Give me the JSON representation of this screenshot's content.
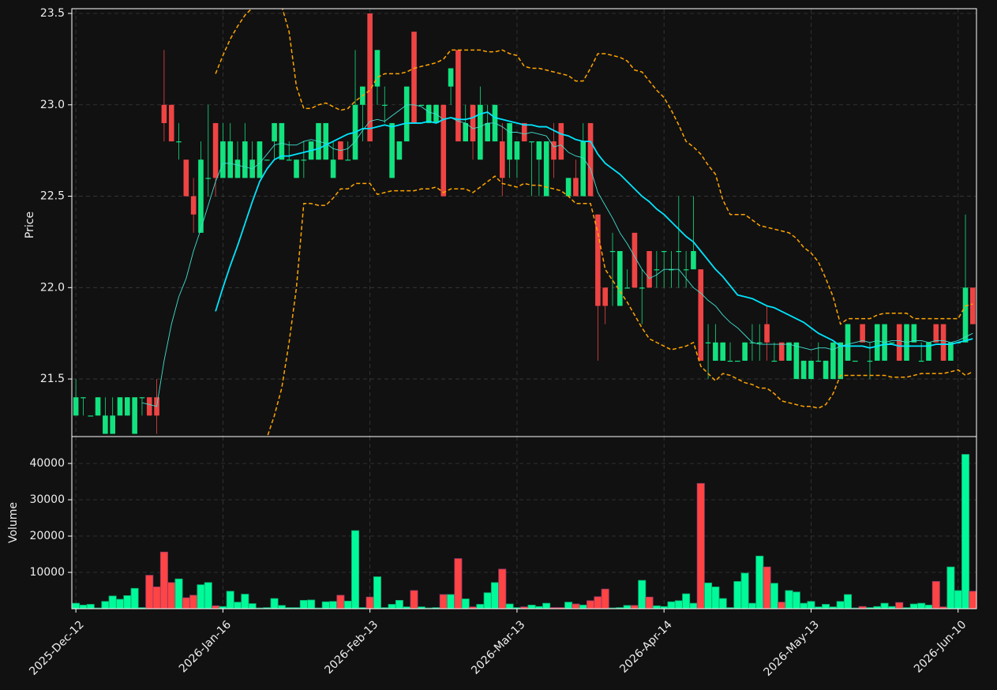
{
  "chart_data": {
    "type": "candlestick",
    "y_label": "Price",
    "y2_label": "Volume",
    "up_color": "#12e27f",
    "down_color": "#ef4444",
    "volume_up_color": "#00fa9a",
    "volume_down_color": "#ff4444",
    "grid": true,
    "xlim": [
      -0.55,
      122.5
    ],
    "xticks": [
      {
        "value": 0,
        "label": "2025-Dec-12"
      },
      {
        "value": 20,
        "label": "2026-Jan-16"
      },
      {
        "value": 40,
        "label": "2026-Feb-13"
      },
      {
        "value": 60,
        "label": "2026-Mar-13"
      },
      {
        "value": 80,
        "label": "2026-Apr-14"
      },
      {
        "value": 100,
        "label": "2026-May-13"
      },
      {
        "value": 120,
        "label": "2026-Jun-10"
      }
    ],
    "ylim": [
      21.185,
      23.526
    ],
    "yticks": [
      21.5,
      {
        "value": 22.0,
        "label": "22.0"
      },
      22.5,
      {
        "value": 23.0,
        "label": "23.0"
      },
      23.5
    ],
    "y2lim": [
      0,
      47400
    ],
    "y2ticks": [
      10000,
      20000,
      30000,
      40000
    ],
    "open": [
      21.3,
      21.4,
      21.3,
      21.3,
      21.2,
      21.2,
      21.3,
      21.3,
      21.2,
      21.4,
      21.4,
      21.4,
      23.0,
      23.0,
      22.8,
      22.7,
      22.5,
      22.3,
      22.6,
      22.9,
      22.6,
      22.6,
      22.6,
      22.6,
      22.6,
      22.6,
      22.7,
      22.8,
      22.7,
      22.7,
      22.6,
      22.7,
      22.7,
      22.7,
      22.7,
      22.6,
      22.8,
      22.7,
      22.7,
      23.0,
      23.5,
      23.1,
      23.0,
      22.6,
      22.7,
      22.8,
      23.4,
      23.0,
      22.9,
      22.9,
      23.0,
      23.1,
      23.3,
      22.8,
      23.0,
      22.7,
      22.8,
      22.8,
      22.8,
      22.7,
      22.7,
      22.9,
      22.8,
      22.7,
      22.5,
      22.8,
      22.9,
      22.5,
      22.6,
      22.5,
      22.9,
      22.4,
      22.0,
      22.2,
      21.9,
      22.0,
      22.3,
      22.0,
      22.2,
      22.1,
      22.2,
      22.1,
      22.2,
      22.1,
      22.1,
      22.1,
      21.7,
      21.6,
      21.6,
      21.6,
      21.6,
      21.6,
      21.7,
      21.7,
      21.8,
      21.6,
      21.7,
      21.6,
      21.5,
      21.5,
      21.5,
      21.6,
      21.5,
      21.5,
      21.5,
      21.6,
      21.6,
      21.8,
      21.6,
      21.6,
      21.6,
      21.7,
      21.8,
      21.6,
      21.7,
      21.6,
      21.6,
      21.8,
      21.8,
      21.6,
      21.7,
      21.7,
      22.0
    ],
    "high": [
      21.5,
      21.4,
      21.3,
      21.4,
      21.4,
      21.4,
      21.4,
      21.4,
      21.4,
      21.4,
      21.4,
      21.5,
      23.3,
      23.0,
      22.9,
      22.7,
      22.6,
      22.8,
      23.0,
      22.9,
      22.9,
      22.9,
      22.8,
      22.9,
      22.8,
      22.8,
      22.7,
      22.9,
      22.9,
      22.8,
      22.7,
      22.8,
      22.8,
      22.9,
      22.9,
      22.8,
      22.8,
      22.8,
      23.3,
      23.1,
      23.5,
      23.3,
      23.1,
      22.9,
      22.8,
      23.1,
      23.4,
      23.0,
      23.0,
      23.0,
      23.0,
      23.2,
      23.3,
      23.0,
      23.0,
      23.1,
      23.0,
      23.0,
      22.9,
      22.9,
      22.8,
      22.9,
      22.8,
      22.8,
      22.8,
      22.9,
      22.9,
      22.6,
      22.7,
      22.9,
      22.9,
      22.4,
      22.0,
      22.3,
      22.2,
      22.1,
      22.3,
      22.1,
      22.2,
      22.2,
      22.2,
      22.2,
      22.5,
      22.2,
      22.5,
      22.1,
      21.8,
      21.8,
      21.7,
      21.7,
      21.6,
      21.7,
      21.8,
      21.8,
      21.9,
      21.7,
      21.7,
      21.7,
      21.7,
      21.6,
      21.6,
      21.7,
      21.6,
      21.7,
      21.7,
      21.8,
      21.6,
      21.8,
      21.7,
      21.8,
      21.8,
      21.7,
      21.8,
      21.8,
      21.8,
      21.7,
      21.7,
      21.8,
      21.8,
      21.7,
      21.7,
      22.4,
      22.0
    ],
    "low": [
      21.3,
      21.3,
      21.3,
      21.3,
      21.2,
      21.2,
      21.3,
      21.3,
      21.2,
      21.3,
      21.3,
      21.2,
      22.8,
      22.8,
      22.7,
      22.5,
      22.3,
      22.3,
      22.5,
      22.5,
      22.6,
      22.6,
      22.6,
      22.6,
      22.6,
      22.6,
      22.7,
      22.7,
      22.7,
      22.7,
      22.6,
      22.6,
      22.7,
      22.7,
      22.7,
      22.6,
      22.7,
      22.7,
      22.7,
      22.8,
      22.8,
      23.0,
      22.9,
      22.6,
      22.7,
      22.8,
      22.9,
      23.0,
      22.9,
      22.9,
      22.5,
      23.0,
      22.8,
      22.8,
      22.7,
      22.7,
      22.8,
      22.8,
      22.5,
      22.6,
      22.6,
      22.8,
      22.5,
      22.5,
      22.5,
      22.6,
      22.7,
      22.5,
      22.5,
      22.5,
      22.5,
      21.6,
      21.8,
      21.9,
      21.9,
      22.0,
      22.0,
      21.8,
      22.0,
      22.0,
      22.0,
      22.0,
      22.0,
      22.0,
      22.1,
      21.6,
      21.5,
      21.6,
      21.6,
      21.6,
      21.6,
      21.6,
      21.6,
      21.6,
      21.6,
      21.6,
      21.6,
      21.6,
      21.5,
      21.5,
      21.5,
      21.6,
      21.5,
      21.5,
      21.5,
      21.6,
      21.6,
      21.7,
      21.5,
      21.6,
      21.6,
      21.7,
      21.6,
      21.6,
      21.7,
      21.6,
      21.6,
      21.7,
      21.6,
      21.6,
      21.7,
      21.7,
      21.8
    ],
    "close": [
      21.4,
      21.4,
      21.3,
      21.4,
      21.3,
      21.3,
      21.4,
      21.4,
      21.4,
      21.4,
      21.3,
      21.3,
      22.9,
      22.8,
      22.8,
      22.5,
      22.4,
      22.7,
      22.6,
      22.6,
      22.8,
      22.8,
      22.7,
      22.8,
      22.7,
      22.8,
      22.7,
      22.9,
      22.9,
      22.7,
      22.7,
      22.7,
      22.8,
      22.9,
      22.9,
      22.7,
      22.7,
      22.7,
      23.0,
      23.1,
      22.8,
      23.3,
      23.0,
      22.9,
      22.8,
      23.1,
      22.9,
      23.0,
      23.0,
      23.0,
      22.5,
      23.2,
      22.8,
      22.9,
      22.8,
      23.0,
      22.9,
      23.0,
      22.6,
      22.9,
      22.8,
      22.8,
      22.8,
      22.8,
      22.8,
      22.7,
      22.7,
      22.6,
      22.5,
      22.8,
      22.5,
      21.9,
      21.9,
      22.2,
      22.2,
      22.0,
      22.0,
      22.0,
      22.0,
      22.1,
      22.2,
      22.1,
      22.2,
      22.1,
      22.2,
      21.6,
      21.7,
      21.7,
      21.7,
      21.6,
      21.6,
      21.7,
      21.7,
      21.7,
      21.7,
      21.6,
      21.6,
      21.7,
      21.7,
      21.6,
      21.6,
      21.6,
      21.6,
      21.7,
      21.7,
      21.8,
      21.6,
      21.7,
      21.6,
      21.8,
      21.8,
      21.7,
      21.6,
      21.8,
      21.8,
      21.6,
      21.7,
      21.7,
      21.6,
      21.7,
      21.7,
      22.0,
      21.8
    ],
    "volume": [
      1500,
      1000,
      1200,
      200,
      2000,
      3500,
      2600,
      3600,
      5600,
      300,
      9200,
      6000,
      15600,
      7200,
      8200,
      3000,
      3700,
      6600,
      7200,
      800,
      600,
      4800,
      1800,
      4000,
      1400,
      200,
      300,
      2800,
      900,
      300,
      300,
      2300,
      2400,
      200,
      1900,
      2000,
      3700,
      2100,
      21500,
      300,
      3200,
      8800,
      300,
      1200,
      2300,
      500,
      5000,
      500,
      200,
      300,
      3900,
      3900,
      13800,
      2700,
      500,
      1200,
      4400,
      7200,
      10900,
      1300,
      300,
      500,
      1000,
      600,
      1500,
      300,
      300,
      1800,
      1300,
      1000,
      2200,
      3300,
      5400,
      200,
      300,
      900,
      900,
      7800,
      3200,
      800,
      600,
      1900,
      2200,
      4100,
      1500,
      34500,
      7100,
      6000,
      2800,
      300,
      7500,
      9800,
      1500,
      14500,
      11500,
      7000,
      1800,
      5000,
      4600,
      1500,
      2000,
      500,
      1200,
      500,
      2000,
      3900,
      200,
      600,
      300,
      600,
      1500,
      600,
      1700,
      300,
      1300,
      1500,
      1000,
      7500,
      500,
      11500,
      5000,
      42500,
      4800
    ],
    "lines": [
      {
        "color": "#40e0d0",
        "style": "thin",
        "values": [
          null,
          null,
          null,
          null,
          null,
          null,
          null,
          null,
          null,
          21.37,
          21.36,
          21.35,
          21.6,
          21.8,
          21.95,
          22.05,
          22.2,
          22.32,
          22.45,
          22.58,
          22.68,
          22.68,
          22.67,
          22.66,
          22.65,
          22.68,
          22.73,
          22.78,
          22.79,
          22.78,
          22.78,
          22.8,
          22.81,
          22.8,
          22.79,
          22.76,
          22.75,
          22.76,
          22.8,
          22.86,
          22.91,
          22.92,
          22.91,
          22.94,
          22.97,
          23.0,
          23.0,
          22.99,
          22.96,
          22.95,
          22.92,
          22.93,
          22.91,
          22.9,
          22.87,
          22.88,
          22.9,
          22.9,
          22.88,
          22.85,
          22.85,
          22.84,
          22.85,
          22.84,
          22.83,
          22.77,
          22.78,
          22.74,
          22.72,
          22.71,
          22.65,
          22.52,
          22.45,
          22.38,
          22.3,
          22.24,
          22.17,
          22.1,
          22.05,
          22.07,
          22.1,
          22.1,
          22.1,
          22.05,
          22.0,
          21.97,
          21.93,
          21.9,
          21.85,
          21.81,
          21.78,
          21.74,
          21.7,
          21.69,
          21.69,
          21.69,
          21.69,
          21.69,
          21.68,
          21.67,
          21.66,
          21.67,
          21.67,
          21.66,
          21.68,
          21.69,
          21.7,
          21.71,
          21.7,
          21.71,
          21.7,
          21.71,
          21.71,
          21.7,
          21.71,
          21.71,
          21.7,
          21.71,
          21.71,
          21.7,
          21.71,
          21.73,
          21.75
        ]
      },
      {
        "color": "#00e5ff",
        "style": "thick",
        "values": [
          null,
          null,
          null,
          null,
          null,
          null,
          null,
          null,
          null,
          null,
          null,
          null,
          null,
          null,
          null,
          null,
          null,
          null,
          null,
          21.87,
          22.0,
          22.12,
          22.23,
          22.35,
          22.47,
          22.58,
          22.65,
          22.7,
          22.72,
          22.72,
          22.73,
          22.74,
          22.75,
          22.76,
          22.78,
          22.8,
          22.82,
          22.84,
          22.85,
          22.87,
          22.87,
          22.88,
          22.89,
          22.88,
          22.89,
          22.9,
          22.9,
          22.9,
          22.91,
          22.9,
          22.92,
          22.93,
          22.92,
          22.92,
          22.93,
          22.95,
          22.96,
          22.93,
          22.92,
          22.91,
          22.9,
          22.89,
          22.89,
          22.88,
          22.88,
          22.86,
          22.84,
          22.83,
          22.81,
          22.8,
          22.8,
          22.73,
          22.68,
          22.65,
          22.62,
          22.58,
          22.54,
          22.5,
          22.47,
          22.43,
          22.4,
          22.36,
          22.32,
          22.28,
          22.25,
          22.2,
          22.15,
          22.1,
          22.06,
          22.01,
          21.96,
          21.95,
          21.94,
          21.92,
          21.9,
          21.89,
          21.87,
          21.85,
          21.83,
          21.81,
          21.78,
          21.75,
          21.73,
          21.71,
          21.68,
          21.68,
          21.68,
          21.68,
          21.67,
          21.68,
          21.69,
          21.69,
          21.68,
          21.68,
          21.68,
          21.68,
          21.68,
          21.69,
          21.69,
          21.69,
          21.7,
          21.71,
          21.72
        ]
      },
      {
        "color": "#ffa500",
        "style": "dashed",
        "values": [
          null,
          null,
          null,
          null,
          null,
          null,
          null,
          null,
          null,
          null,
          null,
          null,
          null,
          null,
          null,
          null,
          null,
          null,
          null,
          23.17,
          23.27,
          23.36,
          23.43,
          23.49,
          23.53,
          23.55,
          23.56,
          23.56,
          23.54,
          23.4,
          23.1,
          22.98,
          22.98,
          23.0,
          23.01,
          22.99,
          22.97,
          22.98,
          23.02,
          23.05,
          23.08,
          23.15,
          23.17,
          23.17,
          23.17,
          23.18,
          23.2,
          23.21,
          23.22,
          23.23,
          23.25,
          23.3,
          23.3,
          23.3,
          23.3,
          23.3,
          23.29,
          23.29,
          23.3,
          23.28,
          23.27,
          23.21,
          23.2,
          23.2,
          23.19,
          23.18,
          23.17,
          23.16,
          23.13,
          23.13,
          23.2,
          23.28,
          23.28,
          23.27,
          23.26,
          23.24,
          23.19,
          23.18,
          23.13,
          23.08,
          23.04,
          22.97,
          22.89,
          22.8,
          22.77,
          22.73,
          22.67,
          22.62,
          22.48,
          22.4,
          22.4,
          22.4,
          22.37,
          22.34,
          22.33,
          22.32,
          22.31,
          22.3,
          22.27,
          22.22,
          22.19,
          22.14,
          22.05,
          21.95,
          21.8,
          21.83,
          21.83,
          21.83,
          21.83,
          21.85,
          21.86,
          21.86,
          21.86,
          21.86,
          21.83,
          21.83,
          21.83,
          21.83,
          21.83,
          21.83,
          21.83,
          21.9,
          21.91
        ]
      },
      {
        "color": "#ffa500",
        "style": "dashed",
        "values": [
          null,
          null,
          null,
          null,
          null,
          null,
          null,
          null,
          null,
          null,
          null,
          null,
          null,
          null,
          null,
          null,
          null,
          null,
          null,
          20.2,
          20.4,
          20.6,
          20.75,
          20.85,
          20.95,
          21.05,
          21.18,
          21.3,
          21.45,
          21.7,
          22.0,
          22.46,
          22.46,
          22.45,
          22.45,
          22.49,
          22.54,
          22.54,
          22.57,
          22.57,
          22.57,
          22.51,
          22.52,
          22.53,
          22.53,
          22.53,
          22.53,
          22.54,
          22.54,
          22.55,
          22.52,
          22.54,
          22.54,
          22.54,
          22.52,
          22.55,
          22.58,
          22.61,
          22.57,
          22.56,
          22.55,
          22.57,
          22.56,
          22.56,
          22.55,
          22.54,
          22.53,
          22.5,
          22.46,
          22.46,
          22.46,
          22.3,
          22.1,
          22.04,
          21.98,
          21.92,
          21.85,
          21.78,
          21.72,
          21.7,
          21.68,
          21.66,
          21.67,
          21.68,
          21.7,
          21.57,
          21.53,
          21.49,
          21.53,
          21.52,
          21.5,
          21.48,
          21.47,
          21.45,
          21.45,
          21.42,
          21.38,
          21.37,
          21.36,
          21.35,
          21.35,
          21.34,
          21.36,
          21.42,
          21.52,
          21.52,
          21.52,
          21.52,
          21.52,
          21.52,
          21.52,
          21.51,
          21.51,
          21.51,
          21.52,
          21.53,
          21.53,
          21.53,
          21.53,
          21.54,
          21.55,
          21.52,
          21.54
        ]
      }
    ]
  }
}
